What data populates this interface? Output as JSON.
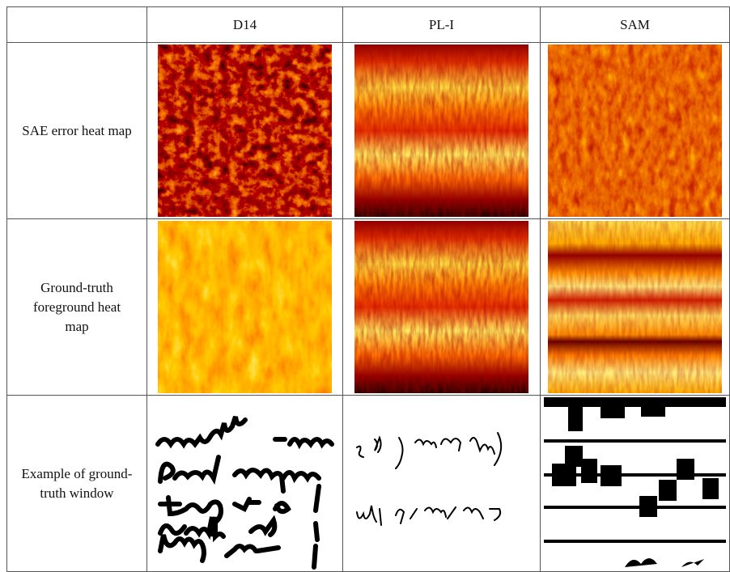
{
  "table": {
    "columns": [
      "D14",
      "PL-I",
      "SAM"
    ],
    "rows": [
      {
        "label": "SAE error heat map"
      },
      {
        "label": "Ground-truth foreground heat map"
      },
      {
        "label": "Example of ground-truth window"
      }
    ]
  }
}
